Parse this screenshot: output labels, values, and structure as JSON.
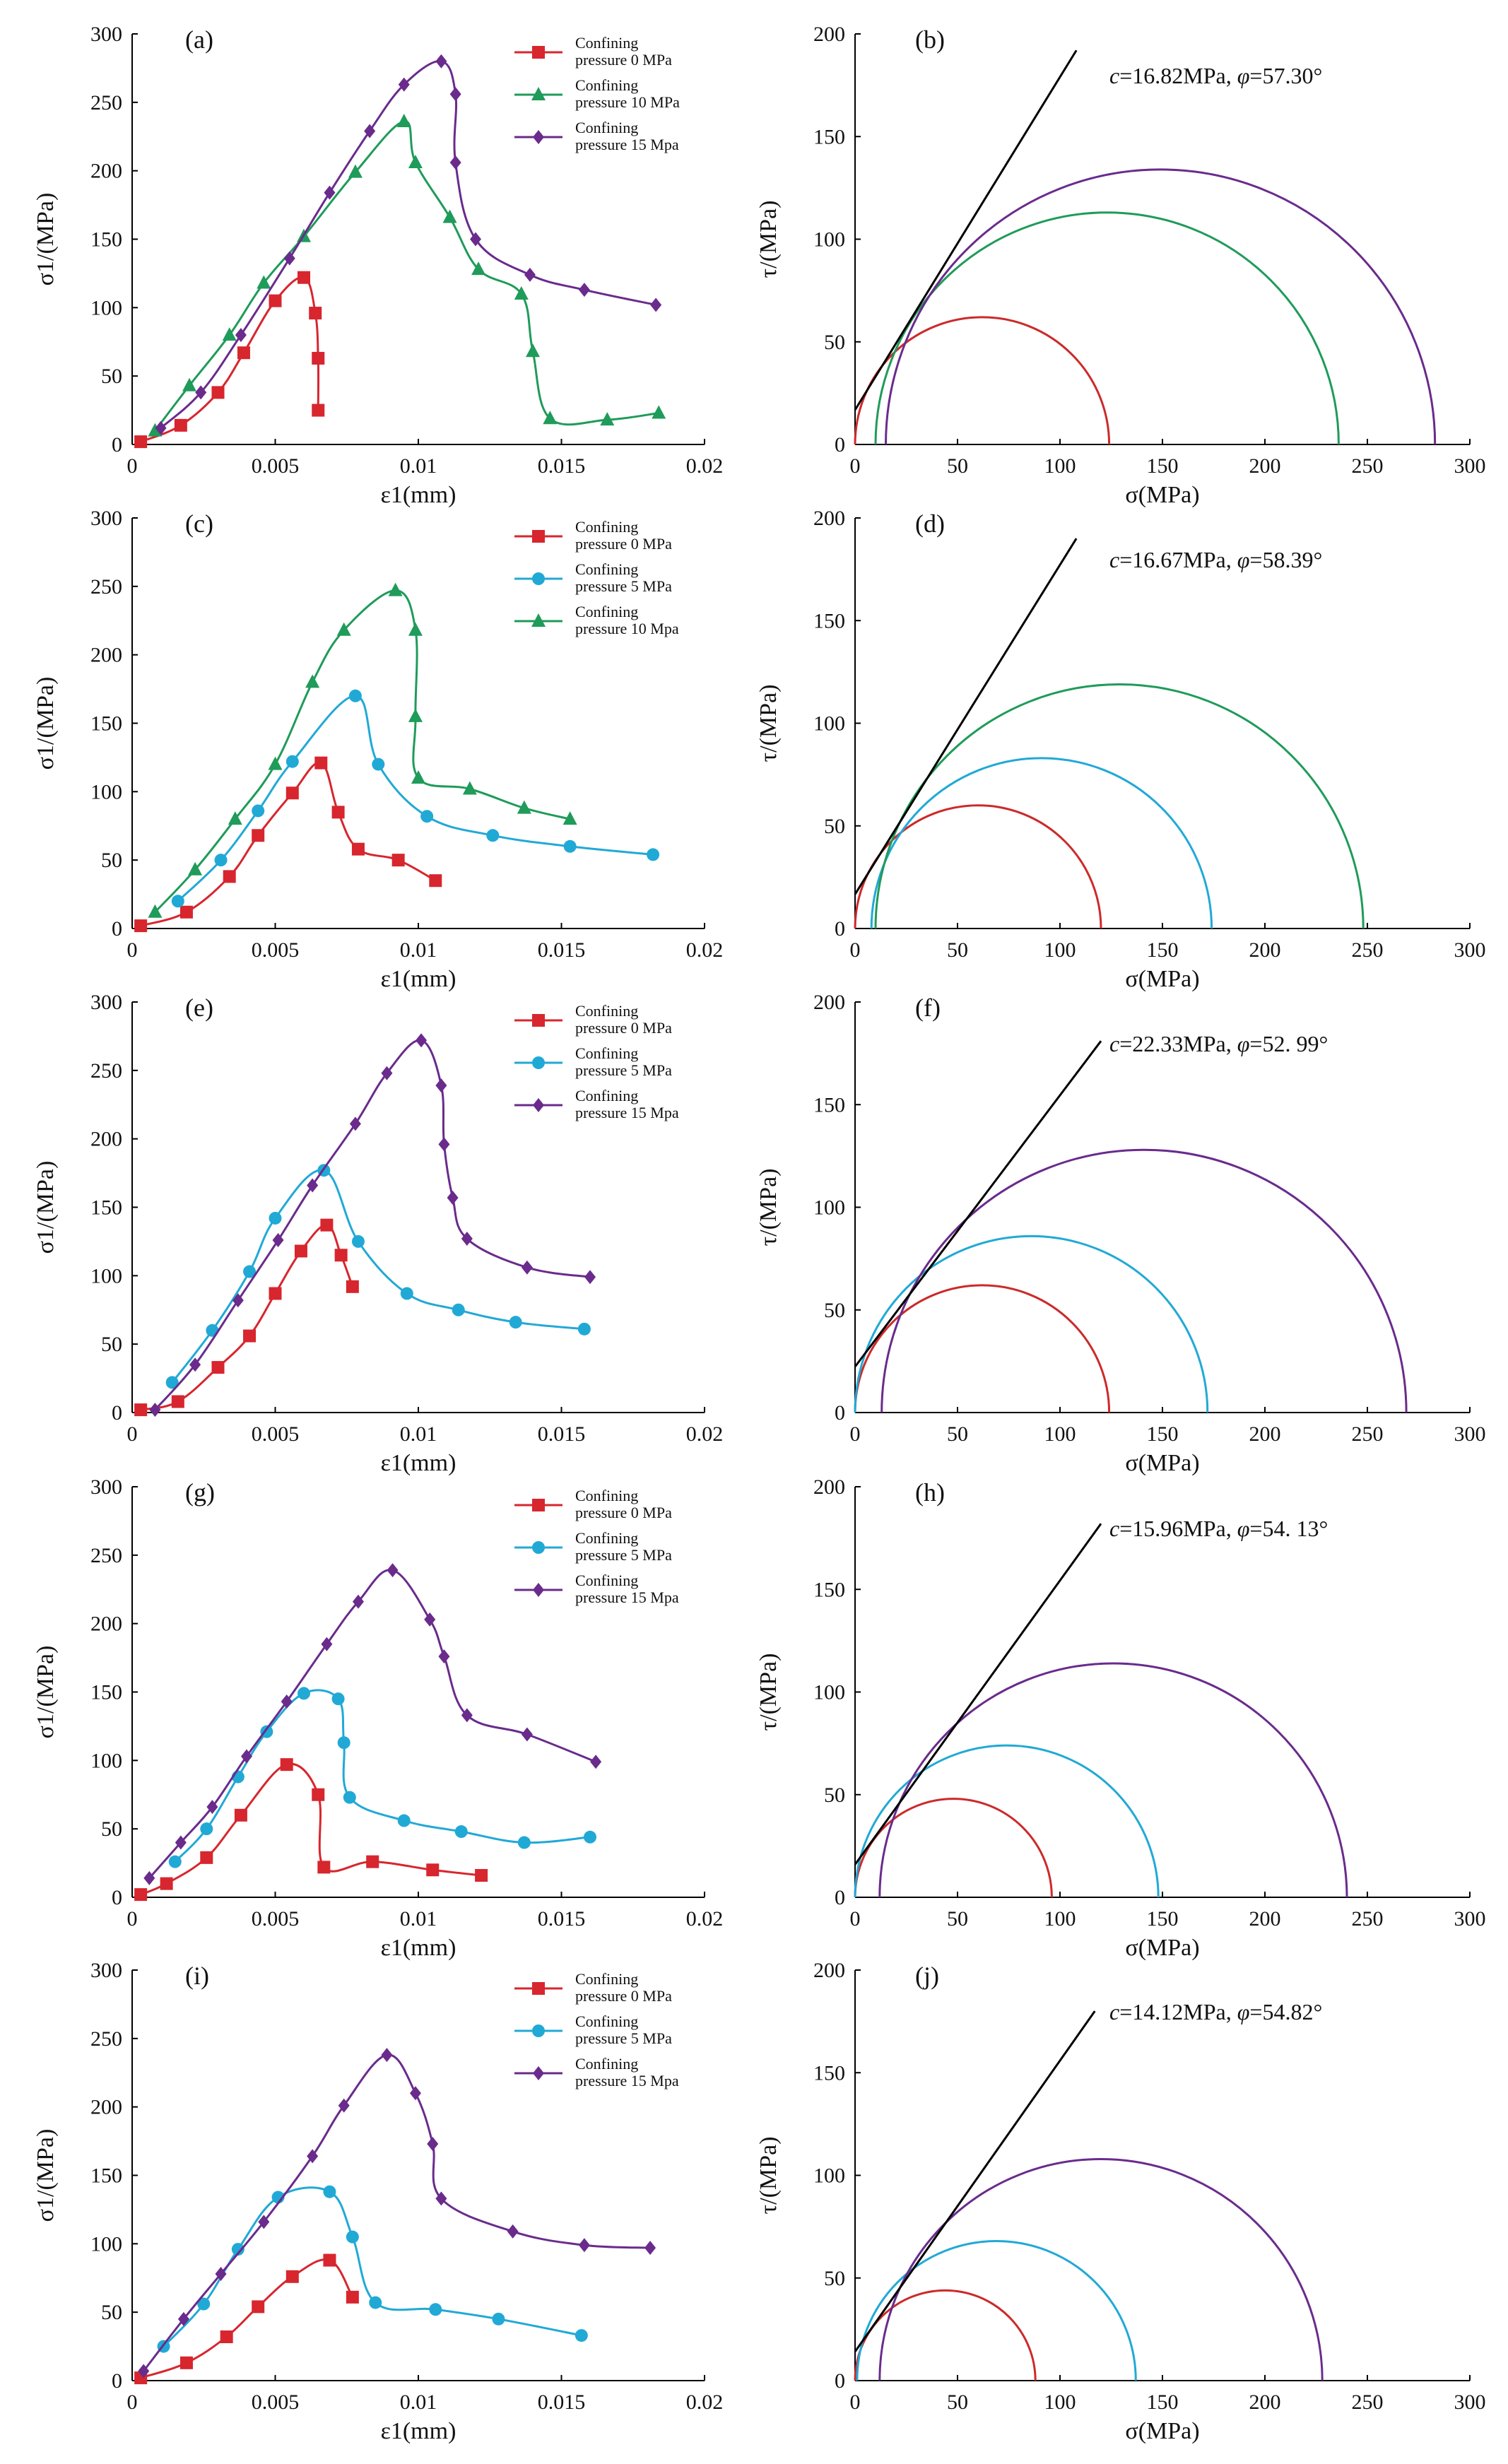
{
  "figure": {
    "colors": {
      "red": "#d7262e",
      "green": "#1f9b5a",
      "purple": "#6a2b8c",
      "cyan": "#21a9d6",
      "black": "#000000",
      "line": "#cc2a2a"
    }
  },
  "chart_data": [
    {
      "panel": "(a)",
      "type": "line",
      "xlabel": "ε1(mm)",
      "ylabel": "σ1/(MPa)",
      "xlim": [
        0,
        0.02
      ],
      "ylim": [
        0,
        300
      ],
      "xticks": [
        "0",
        "0.005",
        "0.01",
        "0.015",
        "0.02"
      ],
      "yticks": [
        "0",
        "50",
        "100",
        "150",
        "200",
        "250",
        "300"
      ],
      "series": [
        {
          "name": "Confining pressure 0 MPa",
          "legend_lines": [
            "Confining",
            "pressure 0 MPa"
          ],
          "color": "#d7262e",
          "marker": "square",
          "x": [
            0.0003,
            0.0017,
            0.003,
            0.0039,
            0.005,
            0.006,
            0.0064,
            0.0065,
            0.0065
          ],
          "y": [
            2,
            14,
            38,
            67,
            105,
            122,
            96,
            63,
            25
          ]
        },
        {
          "name": "Confining pressure 10 MPa",
          "legend_lines": [
            "Confining",
            "pressure 10 MPa"
          ],
          "color": "#1f9b5a",
          "marker": "triangle",
          "x": [
            0.0008,
            0.002,
            0.0034,
            0.0046,
            0.006,
            0.0078,
            0.0095,
            0.0099,
            0.0111,
            0.0121,
            0.0136,
            0.014,
            0.0146,
            0.0166,
            0.0184
          ],
          "y": [
            10,
            43,
            80,
            118,
            152,
            199,
            236,
            206,
            166,
            128,
            110,
            68,
            19,
            18,
            23
          ]
        },
        {
          "name": "Confining pressure 15 Mpa",
          "legend_lines": [
            "Confining",
            "pressure 15 Mpa"
          ],
          "color": "#6a2b8c",
          "marker": "diamond",
          "x": [
            0.001,
            0.0024,
            0.0038,
            0.0055,
            0.0069,
            0.0083,
            0.0095,
            0.0108,
            0.0113,
            0.0113,
            0.012,
            0.0139,
            0.0158,
            0.0183
          ],
          "y": [
            12,
            38,
            80,
            136,
            184,
            229,
            263,
            280,
            256,
            206,
            150,
            124,
            113,
            102
          ]
        }
      ]
    },
    {
      "panel": "(b)",
      "type": "line",
      "variant": "mohr",
      "xlabel": "σ(MPa)",
      "ylabel": "τ/(MPa)",
      "xlim": [
        0,
        300
      ],
      "ylim": [
        0,
        200
      ],
      "xticks": [
        "0",
        "50",
        "100",
        "150",
        "200",
        "250",
        "300"
      ],
      "yticks": [
        "0",
        "50",
        "100",
        "150",
        "200"
      ],
      "annotation_c": "c",
      "annotation_c_value": "=16.82MPa, ",
      "annotation_phi": "φ",
      "annotation_phi_value": "=57.30°",
      "line": {
        "x": [
          0,
          108
        ],
        "y": [
          16.82,
          192
        ]
      },
      "circles": [
        {
          "center": 62,
          "radius": 62,
          "color": "#cc2a2a"
        },
        {
          "center": 123,
          "radius": 113,
          "color": "#1f9b5a"
        },
        {
          "center": 149,
          "radius": 134,
          "color": "#6a2b8c"
        }
      ]
    },
    {
      "panel": "(c)",
      "type": "line",
      "xlabel": "ε1(mm)",
      "ylabel": "σ1/(MPa)",
      "xlim": [
        0,
        0.02
      ],
      "ylim": [
        0,
        300
      ],
      "xticks": [
        "0",
        "0.005",
        "0.01",
        "0.015",
        "0.02"
      ],
      "yticks": [
        "0",
        "50",
        "100",
        "150",
        "200",
        "250",
        "300"
      ],
      "series": [
        {
          "name": "Confining pressure 0 MPa",
          "legend_lines": [
            "Confining",
            "pressure 0 MPa"
          ],
          "color": "#d7262e",
          "marker": "square",
          "x": [
            0.0003,
            0.0019,
            0.0034,
            0.0044,
            0.0056,
            0.0066,
            0.0072,
            0.0079,
            0.0093,
            0.0106
          ],
          "y": [
            2,
            12,
            38,
            68,
            99,
            121,
            85,
            58,
            50,
            35
          ]
        },
        {
          "name": "Confining pressure 5 MPa",
          "legend_lines": [
            "Confining",
            "pressure 5 MPa"
          ],
          "color": "#21a9d6",
          "marker": "circle",
          "x": [
            0.0016,
            0.0031,
            0.0044,
            0.0056,
            0.0078,
            0.0086,
            0.0103,
            0.0126,
            0.0153,
            0.0182
          ],
          "y": [
            20,
            50,
            86,
            122,
            170,
            120,
            82,
            68,
            60,
            54
          ]
        },
        {
          "name": "Confining pressure 10 Mpa",
          "legend_lines": [
            "Confining",
            "pressure 10 Mpa"
          ],
          "color": "#1f9b5a",
          "marker": "triangle",
          "x": [
            0.0008,
            0.0022,
            0.0036,
            0.005,
            0.0063,
            0.0074,
            0.0092,
            0.0099,
            0.0099,
            0.01,
            0.0118,
            0.0137,
            0.0153
          ],
          "y": [
            12,
            43,
            80,
            120,
            180,
            218,
            247,
            218,
            155,
            110,
            102,
            88,
            80
          ]
        }
      ]
    },
    {
      "panel": "(d)",
      "type": "line",
      "variant": "mohr",
      "xlabel": "σ(MPa)",
      "ylabel": "τ/(MPa)",
      "xlim": [
        0,
        300
      ],
      "ylim": [
        0,
        200
      ],
      "xticks": [
        "0",
        "50",
        "100",
        "150",
        "200",
        "250",
        "300"
      ],
      "yticks": [
        "0",
        "50",
        "100",
        "150",
        "200"
      ],
      "annotation_c": "c",
      "annotation_c_value": "=16.67MPa, ",
      "annotation_phi": "φ",
      "annotation_phi_value": "=58.39°",
      "line": {
        "x": [
          0,
          108
        ],
        "y": [
          16.67,
          190
        ]
      },
      "circles": [
        {
          "center": 60,
          "radius": 60,
          "color": "#cc2a2a"
        },
        {
          "center": 91,
          "radius": 83,
          "color": "#21a9d6"
        },
        {
          "center": 129,
          "radius": 119,
          "color": "#1f9b5a"
        }
      ]
    },
    {
      "panel": "(e)",
      "type": "line",
      "xlabel": "ε1(mm)",
      "ylabel": "σ1/(MPa)",
      "xlim": [
        0,
        0.02
      ],
      "ylim": [
        0,
        300
      ],
      "xticks": [
        "0",
        "0.005",
        "0.01",
        "0.015",
        "0.02"
      ],
      "yticks": [
        "0",
        "50",
        "100",
        "150",
        "200",
        "250",
        "300"
      ],
      "series": [
        {
          "name": "Confining pressure 0 MPa",
          "legend_lines": [
            "Confining",
            "pressure 0 MPa"
          ],
          "color": "#d7262e",
          "marker": "square",
          "x": [
            0.0003,
            0.0016,
            0.003,
            0.0041,
            0.005,
            0.0059,
            0.0068,
            0.0073,
            0.0077
          ],
          "y": [
            2,
            8,
            33,
            56,
            87,
            118,
            137,
            115,
            92
          ]
        },
        {
          "name": "Confining pressure 5 MPa",
          "legend_lines": [
            "Confining",
            "pressure 5 MPa"
          ],
          "color": "#21a9d6",
          "marker": "circle",
          "x": [
            0.0014,
            0.0028,
            0.0041,
            0.005,
            0.0067,
            0.0079,
            0.0096,
            0.0114,
            0.0134,
            0.0158
          ],
          "y": [
            22,
            60,
            103,
            142,
            177,
            125,
            87,
            75,
            66,
            61
          ]
        },
        {
          "name": "Confining pressure 15 Mpa",
          "legend_lines": [
            "Confining",
            "pressure 15 Mpa"
          ],
          "color": "#6a2b8c",
          "marker": "diamond",
          "x": [
            0.0008,
            0.0022,
            0.0037,
            0.0051,
            0.0063,
            0.0078,
            0.0089,
            0.0101,
            0.0108,
            0.0109,
            0.0112,
            0.0117,
            0.0138,
            0.016
          ],
          "y": [
            2,
            35,
            82,
            126,
            166,
            211,
            248,
            272,
            239,
            196,
            157,
            127,
            106,
            99
          ]
        }
      ]
    },
    {
      "panel": "(f)",
      "type": "line",
      "variant": "mohr",
      "xlabel": "σ(MPa)",
      "ylabel": "τ/(MPa)",
      "xlim": [
        0,
        300
      ],
      "ylim": [
        0,
        200
      ],
      "xticks": [
        "0",
        "50",
        "100",
        "150",
        "200",
        "250",
        "300"
      ],
      "yticks": [
        "0",
        "50",
        "100",
        "150",
        "200"
      ],
      "annotation_c": "c",
      "annotation_c_value": "=22.33MPa, ",
      "annotation_phi": "φ",
      "annotation_phi_value": "=52. 99°",
      "line": {
        "x": [
          0,
          120
        ],
        "y": [
          22.33,
          181
        ]
      },
      "circles": [
        {
          "center": 62,
          "radius": 62,
          "color": "#cc2a2a"
        },
        {
          "center": 86,
          "radius": 86,
          "color": "#21a9d6"
        },
        {
          "center": 141,
          "radius": 128,
          "color": "#6a2b8c"
        }
      ]
    },
    {
      "panel": "(g)",
      "type": "line",
      "xlabel": "ε1(mm)",
      "ylabel": "σ1/(MPa)",
      "xlim": [
        0,
        0.02
      ],
      "ylim": [
        0,
        300
      ],
      "xticks": [
        "0",
        "0.005",
        "0.01",
        "0.015",
        "0.02"
      ],
      "yticks": [
        "0",
        "50",
        "100",
        "150",
        "200",
        "250",
        "300"
      ],
      "series": [
        {
          "name": "Confining pressure 0 MPa",
          "legend_lines": [
            "Confining",
            "pressure 0 MPa"
          ],
          "color": "#d7262e",
          "marker": "square",
          "x": [
            0.0003,
            0.0012,
            0.0026,
            0.0038,
            0.0054,
            0.0065,
            0.0067,
            0.0084,
            0.0105,
            0.0122
          ],
          "y": [
            2,
            10,
            29,
            60,
            97,
            75,
            22,
            26,
            20,
            16
          ]
        },
        {
          "name": "Confining pressure 5 MPa",
          "legend_lines": [
            "Confining",
            "pressure 5 MPa"
          ],
          "color": "#21a9d6",
          "marker": "circle",
          "x": [
            0.0015,
            0.0026,
            0.0037,
            0.0047,
            0.006,
            0.0072,
            0.0074,
            0.0076,
            0.0095,
            0.0115,
            0.0137,
            0.016
          ],
          "y": [
            26,
            50,
            88,
            121,
            149,
            145,
            113,
            73,
            56,
            48,
            40,
            44
          ]
        },
        {
          "name": "Confining pressure 15 Mpa",
          "legend_lines": [
            "Confining",
            "pressure 15 Mpa"
          ],
          "color": "#6a2b8c",
          "marker": "diamond",
          "x": [
            0.0006,
            0.0017,
            0.0028,
            0.004,
            0.0054,
            0.0068,
            0.0079,
            0.0091,
            0.0104,
            0.0109,
            0.0117,
            0.0138,
            0.0162
          ],
          "y": [
            14,
            40,
            66,
            103,
            143,
            185,
            216,
            239,
            203,
            176,
            133,
            119,
            99
          ]
        }
      ]
    },
    {
      "panel": "(h)",
      "type": "line",
      "variant": "mohr",
      "xlabel": "σ(MPa)",
      "ylabel": "τ/(MPa)",
      "xlim": [
        0,
        300
      ],
      "ylim": [
        0,
        200
      ],
      "xticks": [
        "0",
        "50",
        "100",
        "150",
        "200",
        "250",
        "300"
      ],
      "yticks": [
        "0",
        "50",
        "100",
        "150",
        "200"
      ],
      "annotation_c": "c",
      "annotation_c_value": "=15.96MPa, ",
      "annotation_phi": "φ",
      "annotation_phi_value": "=54. 13°",
      "line": {
        "x": [
          0,
          120
        ],
        "y": [
          15.96,
          182
        ]
      },
      "circles": [
        {
          "center": 48,
          "radius": 48,
          "color": "#cc2a2a"
        },
        {
          "center": 74,
          "radius": 74,
          "color": "#21a9d6"
        },
        {
          "center": 126,
          "radius": 114,
          "color": "#6a2b8c"
        }
      ]
    },
    {
      "panel": "(i)",
      "type": "line",
      "xlabel": "ε1(mm)",
      "ylabel": "σ1/(MPa)",
      "xlim": [
        0,
        0.02
      ],
      "ylim": [
        0,
        300
      ],
      "xticks": [
        "0",
        "0.005",
        "0.01",
        "0.015",
        "0.02"
      ],
      "yticks": [
        "0",
        "50",
        "100",
        "150",
        "200",
        "250",
        "300"
      ],
      "series": [
        {
          "name": "Confining pressure 0 MPa",
          "legend_lines": [
            "Confining",
            "pressure 0 MPa"
          ],
          "color": "#d7262e",
          "marker": "square",
          "x": [
            0.0003,
            0.0019,
            0.0033,
            0.0044,
            0.0056,
            0.0069,
            0.0077
          ],
          "y": [
            2,
            13,
            32,
            54,
            76,
            88,
            61
          ]
        },
        {
          "name": "Confining pressure 5 MPa",
          "legend_lines": [
            "Confining",
            "pressure 5 MPa"
          ],
          "color": "#21a9d6",
          "marker": "circle",
          "x": [
            0.0011,
            0.0025,
            0.0037,
            0.0051,
            0.0069,
            0.0077,
            0.0085,
            0.0106,
            0.0128,
            0.0157
          ],
          "y": [
            25,
            56,
            96,
            134,
            138,
            105,
            57,
            52,
            45,
            33
          ]
        },
        {
          "name": "Confining pressure 15 Mpa",
          "legend_lines": [
            "Confining",
            "pressure 15 Mpa"
          ],
          "color": "#6a2b8c",
          "marker": "diamond",
          "x": [
            0.0004,
            0.0018,
            0.0031,
            0.0046,
            0.0063,
            0.0074,
            0.0089,
            0.0099,
            0.0105,
            0.0108,
            0.0133,
            0.0158,
            0.0181
          ],
          "y": [
            7,
            45,
            78,
            116,
            164,
            201,
            238,
            210,
            173,
            133,
            109,
            99,
            97
          ]
        }
      ]
    },
    {
      "panel": "(j)",
      "type": "line",
      "variant": "mohr",
      "xlabel": "σ(MPa)",
      "ylabel": "τ/(MPa)",
      "xlim": [
        0,
        300
      ],
      "ylim": [
        0,
        200
      ],
      "xticks": [
        "0",
        "50",
        "100",
        "150",
        "200",
        "250",
        "300"
      ],
      "yticks": [
        "0",
        "50",
        "100",
        "150",
        "200"
      ],
      "annotation_c": "c",
      "annotation_c_value": "=14.12MPa, ",
      "annotation_phi": "φ",
      "annotation_phi_value": "=54.82°",
      "line": {
        "x": [
          0,
          117
        ],
        "y": [
          14.12,
          180
        ]
      },
      "circles": [
        {
          "center": 44,
          "radius": 44,
          "color": "#cc2a2a"
        },
        {
          "center": 69,
          "radius": 68,
          "color": "#21a9d6"
        },
        {
          "center": 120,
          "radius": 108,
          "color": "#6a2b8c"
        }
      ]
    }
  ]
}
